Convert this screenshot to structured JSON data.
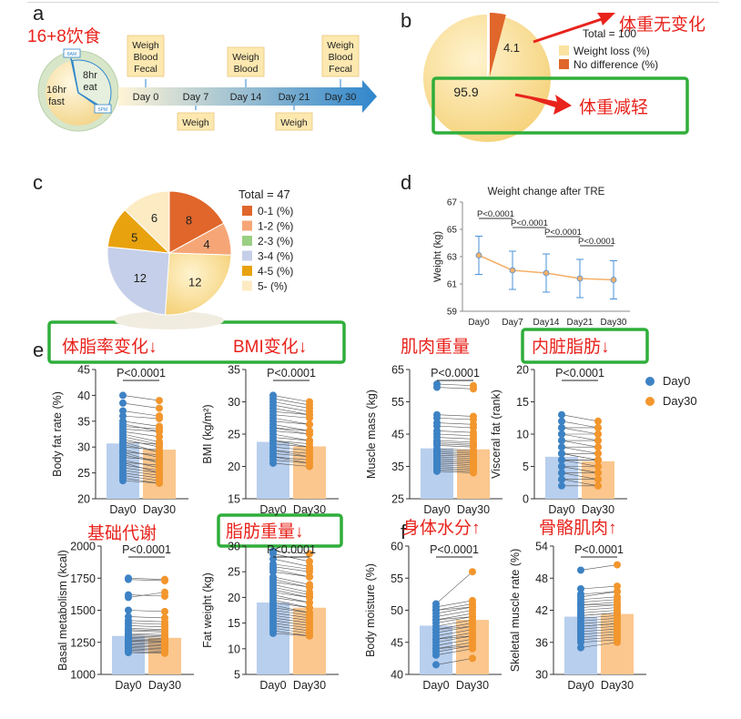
{
  "panel_labels": {
    "a": "a",
    "b": "b",
    "c": "c",
    "d": "d",
    "e": "e",
    "f": "f"
  },
  "colors": {
    "red": "#e8231c",
    "green": "#2fae3a",
    "day0_dot": "#3d82c4",
    "day0_bar": "#b8cfee",
    "day30_dot": "#f2962d",
    "day30_bar": "#fbc78e",
    "arrow_blue": "#3b8fd1",
    "pie_light": "#fbe2a0",
    "pie_orange": "#e0662b"
  },
  "annotations": {
    "fasting": "16+8饮食",
    "no_change": "体重无变化",
    "loss": "体重减轻",
    "fat_rate": "体脂率变化↓",
    "bmi": "BMI变化↓",
    "muscle": "肌肉重量",
    "visceral": "内脏脂肪↓",
    "basal": "基础代谢",
    "fat_weight": "脂肪重量↓",
    "moisture": "身体水分↑",
    "skeletal": "骨骼肌肉↑"
  },
  "timeline": {
    "clock_fast": [
      "16hr",
      "fast"
    ],
    "clock_eat": [
      "8hr",
      "eat"
    ],
    "clock_8am": "8AM",
    "clock_5pm": "5PM",
    "days": [
      "Day 0",
      "Day 7",
      "Day 14",
      "Day 21",
      "Day 30"
    ],
    "top_boxes": [
      {
        "day": "Day 0",
        "lines": [
          "Weigh",
          "Blood",
          "Fecal"
        ]
      },
      {
        "day": "Day 14",
        "lines": [
          "Weigh",
          "Blood"
        ]
      },
      {
        "day": "Day 30",
        "lines": [
          "Weigh",
          "Blood",
          "Fecal"
        ]
      }
    ],
    "bottom_boxes": [
      {
        "day": "Day 7",
        "lines": [
          "Weigh"
        ]
      },
      {
        "day": "Day 21",
        "lines": [
          "Weigh"
        ]
      }
    ]
  },
  "chart_data": [
    {
      "id": "b",
      "type": "pie",
      "total_label": "Total = 100",
      "labels": [
        "Weight loss (%)",
        "No difference (%)"
      ],
      "values": [
        95.9,
        4.1
      ],
      "colors": [
        "#fbe2a0",
        "#e0662b"
      ]
    },
    {
      "id": "c",
      "type": "pie",
      "total_label": "Total = 47",
      "labels": [
        "0-1  (%)",
        "1-2  (%)",
        "2-3  (%)",
        "3-4  (%)",
        "4-5  (%)",
        "5-  (%)"
      ],
      "values": [
        8,
        4,
        12,
        12,
        5,
        6
      ],
      "colors": [
        "#e0662b",
        "#f6a676",
        "#9bcf83",
        "#c5cfe9",
        "#e8a20e",
        "#fdebc4"
      ]
    },
    {
      "id": "d",
      "type": "line",
      "title": "Weight change after TRE",
      "ylabel": "Weight (kg)",
      "categories": [
        "Day0",
        "Day7",
        "Day14",
        "Day21",
        "Day30"
      ],
      "values": [
        63.1,
        62.0,
        61.8,
        61.4,
        61.3
      ],
      "errors": [
        1.4,
        1.4,
        1.4,
        1.4,
        1.4
      ],
      "ylim": [
        59,
        67
      ],
      "yticks": [
        59,
        61,
        63,
        65,
        67
      ],
      "comparisons": [
        {
          "from": 0,
          "to": 1,
          "label": "P<0.0001"
        },
        {
          "from": 1,
          "to": 2,
          "label": "P<0.0001"
        },
        {
          "from": 2,
          "to": 3,
          "label": "P<0.0001"
        },
        {
          "from": 3,
          "to": 4,
          "label": "P<0.0001"
        }
      ]
    },
    {
      "id": "e1",
      "type": "bar",
      "ylabel": "Body fat rate (%)",
      "categories": [
        "Day0",
        "Day30"
      ],
      "values": [
        30.7,
        29.5
      ],
      "ylim": [
        20,
        45
      ],
      "yticks": [
        20,
        25,
        30,
        35,
        40,
        45
      ],
      "pvalue": "P<0.0001",
      "pairs": [
        [
          40.0,
          39.0
        ],
        [
          38.5,
          37.5
        ],
        [
          37.0,
          36.0
        ],
        [
          36.0,
          35.5
        ],
        [
          35.0,
          34.0
        ],
        [
          34.5,
          33.0
        ],
        [
          34.0,
          33.5
        ],
        [
          33.0,
          32.0
        ],
        [
          32.5,
          31.0
        ],
        [
          32.0,
          30.5
        ],
        [
          31.5,
          30.0
        ],
        [
          31.0,
          30.5
        ],
        [
          30.5,
          29.0
        ],
        [
          30.0,
          29.5
        ],
        [
          29.5,
          28.0
        ],
        [
          29.0,
          28.5
        ],
        [
          28.5,
          27.0
        ],
        [
          28.0,
          27.5
        ],
        [
          27.5,
          26.0
        ],
        [
          27.0,
          26.5
        ],
        [
          26.5,
          25.5
        ],
        [
          26.0,
          25.0
        ],
        [
          25.5,
          24.5
        ],
        [
          25.0,
          24.0
        ],
        [
          24.5,
          23.5
        ],
        [
          24.0,
          23.0
        ],
        [
          23.5,
          23.0
        ],
        [
          33.5,
          33.0
        ],
        [
          31.0,
          29.0
        ],
        [
          29.0,
          27.0
        ],
        [
          27.0,
          25.0
        ]
      ]
    },
    {
      "id": "e2",
      "type": "bar",
      "ylabel": "BMI (kg/m²)",
      "categories": [
        "Day0",
        "Day30"
      ],
      "values": [
        23.8,
        23.1
      ],
      "ylim": [
        15,
        35
      ],
      "yticks": [
        15,
        20,
        25,
        30,
        35
      ],
      "pvalue": "P<0.0001",
      "pairs": [
        [
          31.0,
          30.0
        ],
        [
          30.5,
          29.5
        ],
        [
          30.0,
          29.0
        ],
        [
          29.5,
          28.5
        ],
        [
          29.0,
          28.0
        ],
        [
          28.0,
          27.5
        ],
        [
          27.5,
          26.5
        ],
        [
          27.0,
          26.5
        ],
        [
          26.5,
          25.5
        ],
        [
          26.0,
          25.0
        ],
        [
          25.5,
          25.0
        ],
        [
          25.0,
          24.0
        ],
        [
          24.5,
          24.0
        ],
        [
          24.0,
          23.0
        ],
        [
          23.5,
          23.0
        ],
        [
          23.0,
          22.5
        ],
        [
          22.5,
          22.0
        ],
        [
          22.0,
          21.5
        ],
        [
          21.5,
          21.0
        ],
        [
          21.0,
          20.5
        ],
        [
          20.5,
          20.0
        ],
        [
          28.5,
          28.0
        ],
        [
          26.0,
          25.5
        ],
        [
          24.0,
          23.5
        ],
        [
          22.5,
          21.5
        ],
        [
          21.5,
          20.5
        ]
      ]
    },
    {
      "id": "e3",
      "type": "bar",
      "ylabel": "Muscle mass (kg)",
      "categories": [
        "Day0",
        "Day30"
      ],
      "values": [
        40.6,
        40.3
      ],
      "ylim": [
        25,
        65
      ],
      "yticks": [
        25,
        35,
        45,
        55,
        65
      ],
      "pvalue": "P<0.0001",
      "pairs": [
        [
          60.5,
          60.0
        ],
        [
          59.5,
          59.0
        ],
        [
          51.0,
          50.5
        ],
        [
          50.0,
          49.5
        ],
        [
          48.5,
          48.0
        ],
        [
          47.5,
          47.0
        ],
        [
          46.0,
          45.5
        ],
        [
          45.0,
          44.5
        ],
        [
          44.0,
          43.5
        ],
        [
          43.0,
          42.5
        ],
        [
          42.0,
          41.5
        ],
        [
          41.5,
          41.0
        ],
        [
          40.5,
          40.0
        ],
        [
          40.0,
          39.5
        ],
        [
          39.5,
          39.0
        ],
        [
          38.5,
          38.0
        ],
        [
          38.0,
          37.5
        ],
        [
          37.5,
          37.0
        ],
        [
          37.0,
          36.5
        ],
        [
          36.5,
          36.0
        ],
        [
          36.0,
          35.5
        ],
        [
          35.5,
          35.0
        ],
        [
          35.0,
          34.5
        ],
        [
          34.5,
          34.0
        ],
        [
          34.0,
          33.5
        ],
        [
          33.5,
          33.0
        ],
        [
          42.5,
          42.0
        ],
        [
          39.0,
          38.5
        ]
      ]
    },
    {
      "id": "e4",
      "type": "bar",
      "ylabel": "Visceral fat (rank)",
      "categories": [
        "Day0",
        "Day30"
      ],
      "values": [
        6.5,
        5.8
      ],
      "ylim": [
        0,
        20
      ],
      "yticks": [
        0,
        5,
        10,
        15,
        20
      ],
      "pvalue": "P<0.0001",
      "pairs": [
        [
          13,
          12
        ],
        [
          12,
          11
        ],
        [
          11,
          11
        ],
        [
          10,
          9
        ],
        [
          10,
          10
        ],
        [
          9,
          8
        ],
        [
          9,
          9
        ],
        [
          8,
          7
        ],
        [
          8,
          8
        ],
        [
          7,
          6
        ],
        [
          7,
          7
        ],
        [
          6,
          5
        ],
        [
          6,
          6
        ],
        [
          5,
          4
        ],
        [
          5,
          5
        ],
        [
          4,
          4
        ],
        [
          4,
          3
        ],
        [
          3,
          3
        ],
        [
          3,
          2
        ],
        [
          2,
          2
        ],
        [
          11,
          10
        ],
        [
          7,
          6
        ],
        [
          6,
          6
        ],
        [
          5,
          4
        ]
      ]
    },
    {
      "id": "f1",
      "type": "bar",
      "ylabel": "Basal metabolism (kcal)",
      "categories": [
        "Day0",
        "Day30"
      ],
      "values": [
        1300,
        1285
      ],
      "ylim": [
        1000,
        2000
      ],
      "yticks": [
        1000,
        1250,
        1500,
        1750,
        2000
      ],
      "pvalue": "P<0.0001",
      "pairs": [
        [
          1750,
          1740
        ],
        [
          1740,
          1730
        ],
        [
          1620,
          1610
        ],
        [
          1600,
          1640
        ],
        [
          1500,
          1490
        ],
        [
          1450,
          1440
        ],
        [
          1420,
          1410
        ],
        [
          1400,
          1390
        ],
        [
          1380,
          1370
        ],
        [
          1360,
          1350
        ],
        [
          1340,
          1330
        ],
        [
          1320,
          1310
        ],
        [
          1310,
          1300
        ],
        [
          1300,
          1290
        ],
        [
          1290,
          1280
        ],
        [
          1280,
          1270
        ],
        [
          1270,
          1260
        ],
        [
          1260,
          1250
        ],
        [
          1250,
          1240
        ],
        [
          1240,
          1230
        ],
        [
          1230,
          1220
        ],
        [
          1220,
          1210
        ],
        [
          1210,
          1200
        ],
        [
          1200,
          1190
        ],
        [
          1190,
          1180
        ],
        [
          1180,
          1170
        ],
        [
          1170,
          1165
        ],
        [
          1350,
          1340
        ],
        [
          1260,
          1255
        ]
      ]
    },
    {
      "id": "f2",
      "type": "bar",
      "ylabel": "Fat weight (kg)",
      "categories": [
        "Day0",
        "Day30"
      ],
      "values": [
        19.0,
        18.0
      ],
      "ylim": [
        5,
        30
      ],
      "yticks": [
        5,
        10,
        15,
        20,
        25,
        30
      ],
      "pvalue": "P<0.0001",
      "pairs": [
        [
          29.0,
          28.5
        ],
        [
          28.5,
          27.0
        ],
        [
          27.5,
          26.0
        ],
        [
          26.5,
          25.5
        ],
        [
          25.5,
          24.0
        ],
        [
          25.0,
          24.0
        ],
        [
          24.0,
          22.5
        ],
        [
          23.0,
          22.0
        ],
        [
          22.5,
          21.0
        ],
        [
          22.0,
          20.5
        ],
        [
          21.0,
          20.0
        ],
        [
          20.5,
          19.0
        ],
        [
          20.0,
          19.0
        ],
        [
          19.5,
          18.0
        ],
        [
          19.0,
          18.0
        ],
        [
          18.5,
          17.0
        ],
        [
          18.0,
          17.0
        ],
        [
          17.5,
          16.5
        ],
        [
          17.0,
          16.0
        ],
        [
          16.5,
          15.5
        ],
        [
          16.0,
          15.0
        ],
        [
          15.5,
          14.5
        ],
        [
          15.0,
          14.0
        ],
        [
          14.5,
          13.5
        ],
        [
          14.0,
          13.0
        ],
        [
          13.5,
          12.5
        ],
        [
          13.0,
          12.5
        ],
        [
          26.0,
          25.0
        ],
        [
          23.5,
          22.0
        ],
        [
          21.5,
          20.0
        ]
      ]
    },
    {
      "id": "f3",
      "type": "bar",
      "ylabel": "Body moisture (%)",
      "categories": [
        "Day0",
        "Day30"
      ],
      "values": [
        47.6,
        48.5
      ],
      "ylim": [
        40,
        60
      ],
      "yticks": [
        40,
        45,
        50,
        55,
        60
      ],
      "pvalue": "P<0.0001",
      "pairs": [
        [
          51.0,
          56.0
        ],
        [
          50.5,
          51.5
        ],
        [
          50.0,
          51.0
        ],
        [
          49.5,
          50.5
        ],
        [
          49.0,
          50.0
        ],
        [
          48.5,
          49.5
        ],
        [
          48.0,
          49.0
        ],
        [
          47.5,
          48.5
        ],
        [
          47.0,
          48.0
        ],
        [
          46.5,
          47.5
        ],
        [
          46.0,
          47.0
        ],
        [
          45.5,
          46.5
        ],
        [
          45.0,
          46.0
        ],
        [
          44.5,
          45.5
        ],
        [
          44.0,
          45.0
        ],
        [
          43.5,
          44.5
        ],
        [
          43.0,
          44.0
        ],
        [
          41.5,
          42.5
        ],
        [
          50.0,
          50.5
        ],
        [
          48.5,
          49.0
        ],
        [
          47.0,
          47.5
        ],
        [
          45.5,
          46.0
        ],
        [
          44.0,
          44.5
        ]
      ]
    },
    {
      "id": "f4",
      "type": "bar",
      "ylabel": "Skeletal muscle rate (%)",
      "categories": [
        "Day0",
        "Day30"
      ],
      "values": [
        40.8,
        41.3
      ],
      "ylim": [
        30,
        54
      ],
      "yticks": [
        30,
        36,
        42,
        48,
        54
      ],
      "pvalue": "P<0.0001",
      "pairs": [
        [
          49.5,
          50.5
        ],
        [
          46.0,
          46.5
        ],
        [
          45.0,
          45.5
        ],
        [
          44.5,
          45.5
        ],
        [
          44.0,
          44.5
        ],
        [
          43.5,
          44.0
        ],
        [
          43.0,
          43.5
        ],
        [
          42.5,
          43.0
        ],
        [
          42.0,
          42.5
        ],
        [
          41.5,
          42.0
        ],
        [
          41.0,
          41.5
        ],
        [
          40.5,
          41.0
        ],
        [
          40.0,
          40.5
        ],
        [
          39.5,
          40.0
        ],
        [
          39.0,
          39.5
        ],
        [
          38.5,
          39.0
        ],
        [
          38.0,
          38.5
        ],
        [
          37.5,
          38.0
        ],
        [
          37.0,
          37.5
        ],
        [
          36.5,
          37.0
        ],
        [
          36.0,
          36.5
        ],
        [
          35.0,
          36.0
        ],
        [
          43.0,
          43.0
        ],
        [
          41.0,
          41.5
        ],
        [
          39.0,
          39.5
        ]
      ]
    }
  ],
  "legend_e": [
    "Day0",
    "Day30"
  ]
}
